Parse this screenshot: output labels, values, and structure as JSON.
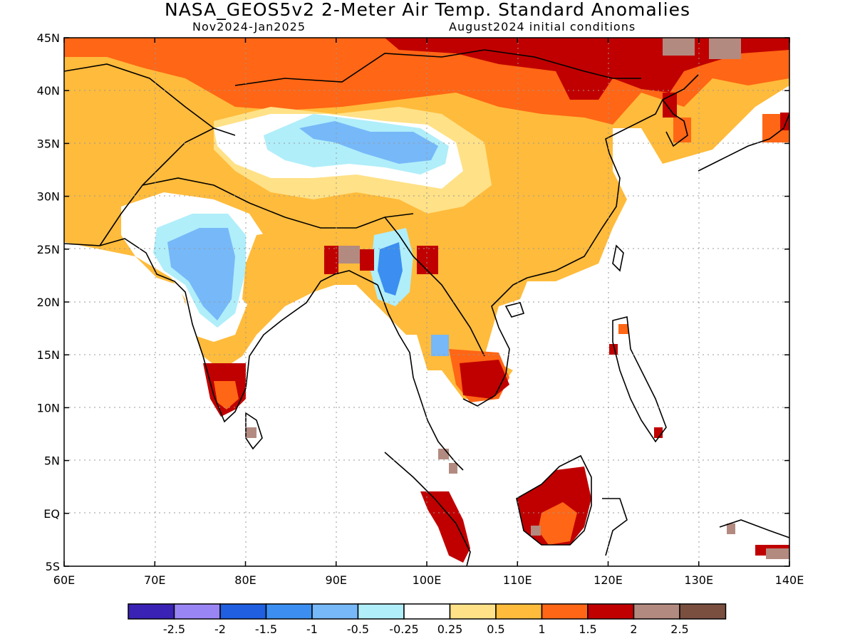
{
  "title": "NASA_GEOS5v2 2-Meter Air Temp. Standard Anomalies",
  "subtitle_left": "Nov2024-Jan2025",
  "subtitle_right": "August2024 initial conditions",
  "lon_ticks": [
    "60E",
    "70E",
    "80E",
    "90E",
    "100E",
    "110E",
    "120E",
    "130E",
    "140E"
  ],
  "lat_ticks": [
    "45N",
    "40N",
    "35N",
    "30N",
    "25N",
    "20N",
    "15N",
    "10N",
    "5N",
    "EQ",
    "5S"
  ],
  "colorbar": {
    "colors": [
      "#3a22b5",
      "#9a85f5",
      "#1f5fe0",
      "#3c8ff0",
      "#76b8f8",
      "#b0eefa",
      "#ffffff",
      "#ffe187",
      "#ffbb3b",
      "#ff6615",
      "#c00000",
      "#b38a80",
      "#7a4f40"
    ],
    "labels": [
      "-2.5",
      "-2",
      "-1.5",
      "-1",
      "-0.5",
      "-0.25",
      "0.25",
      "0.5",
      "1",
      "1.5",
      "2",
      "2.5"
    ]
  },
  "colors": {
    "near_normal": "#ffffff",
    "weak_warm": "#ffe187",
    "warm": "#ffbb3b",
    "strong_warm": "#ff6615",
    "very_warm": "#c00000",
    "extreme_warm": "#b38a80",
    "weak_cold": "#b0eefa",
    "cold": "#76b8f8",
    "strong_cold": "#3c8ff0"
  }
}
